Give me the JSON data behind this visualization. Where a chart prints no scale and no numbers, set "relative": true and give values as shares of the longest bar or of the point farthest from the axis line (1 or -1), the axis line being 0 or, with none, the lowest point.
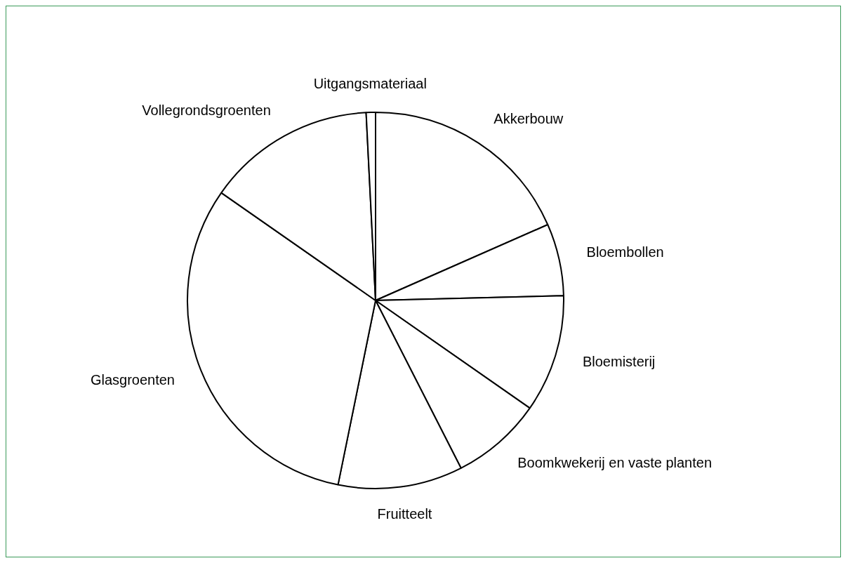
{
  "chart_data": {
    "type": "pie",
    "relative": true,
    "categories": [
      "Akkerbouw",
      "Bloembollen",
      "Bloemisterij",
      "Boomkwekerij en vaste planten",
      "Fruitteelt",
      "Glasgroenten",
      "Vollegrondsgroenten",
      "Uitgangsmateriaal"
    ],
    "values": [
      18.4,
      6.2,
      10.1,
      7.8,
      10.7,
      31.5,
      14.5,
      0.8
    ],
    "colors": [
      "#ffffff",
      "#ffffff",
      "#ffffff",
      "#ffffff",
      "#ffffff",
      "#ffffff",
      "#ffffff",
      "#ffffff"
    ],
    "legend": false
  }
}
